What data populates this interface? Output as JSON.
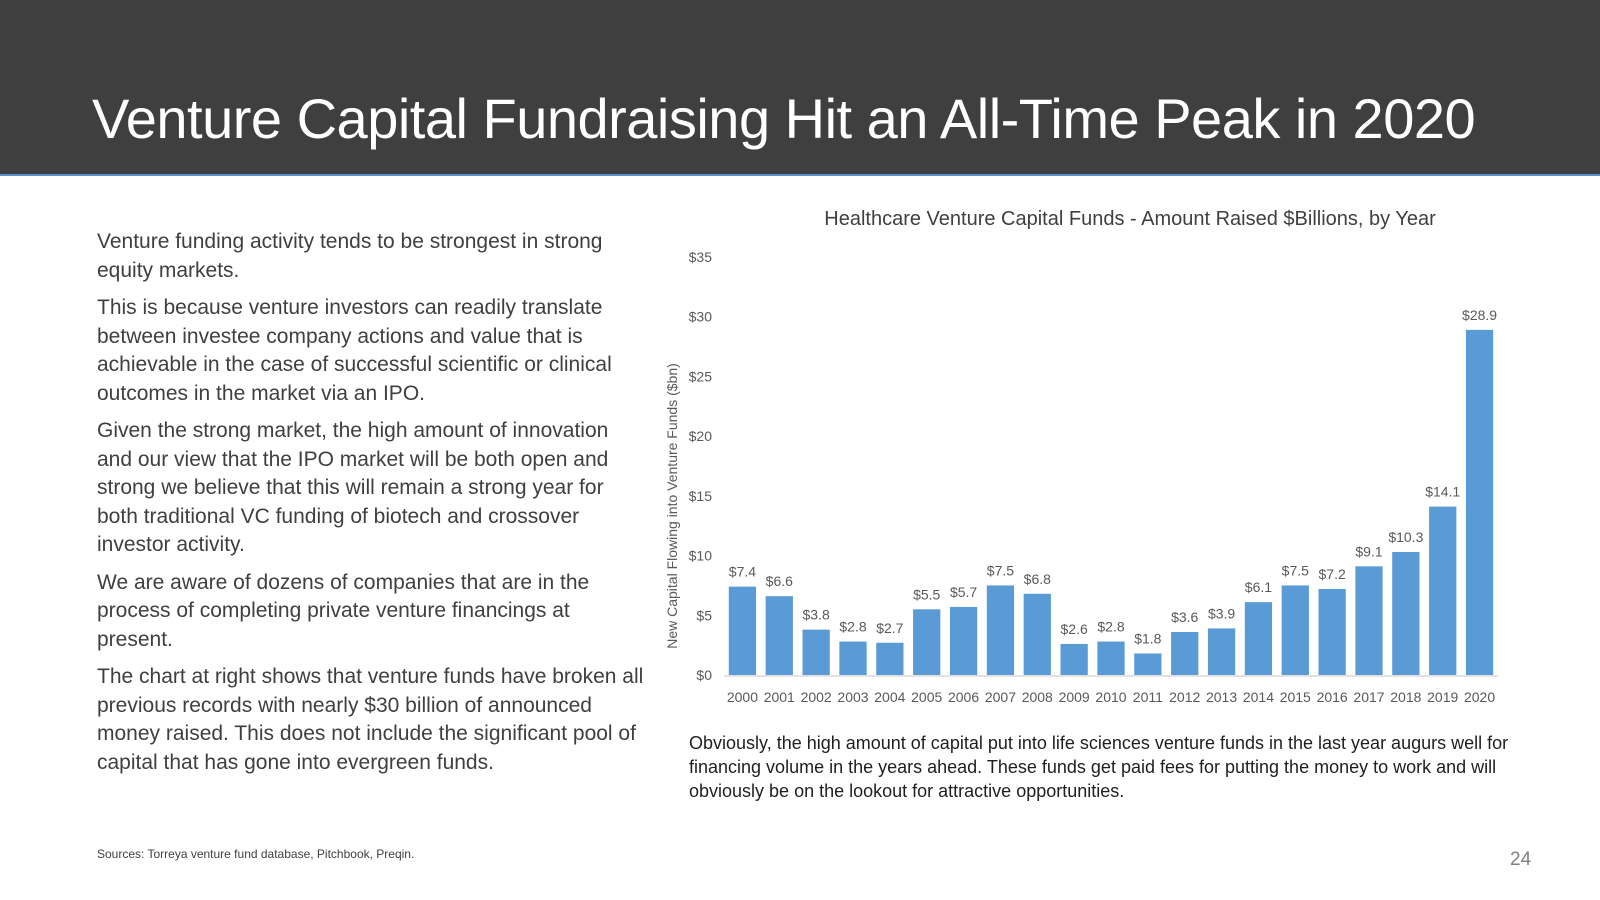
{
  "slide": {
    "title": "Venture Capital Fundraising Hit an All-Time Peak in 2020",
    "paragraphs": [
      "Venture funding activity tends to be strongest in strong equity markets.",
      "This is because venture investors can readily translate between investee company actions and value that is achievable in the case of successful scientific or clinical outcomes in the market via an IPO.",
      "Given the strong market, the high amount of innovation and our view that the IPO market will be both open and strong we believe that this will remain a strong year for both traditional VC funding of biotech and crossover investor activity.",
      "We are aware of dozens of companies that are in the process of completing private venture financings at present.",
      "The chart at right shows that venture funds have broken all previous records with nearly $30 billion of announced money raised. This does not include the significant pool of capital that has gone into evergreen funds."
    ],
    "caption": "Obviously, the high amount of capital put into life sciences venture funds in the last year augurs well for financing volume in the years ahead. These funds get paid fees for putting the money to work and will obviously be on the lookout for attractive opportunities.",
    "source": "Sources: Torreya venture fund database, Pitchbook, Preqin.",
    "page_number": "24"
  },
  "colors": {
    "header_bg": "#3f3f3f",
    "bar": "#5b9bd5",
    "accent_line": "#5b8fc9"
  },
  "chart_data": {
    "type": "bar",
    "title": "Healthcare Venture Capital Funds - Amount Raised $Billions, by Year",
    "xlabel": "",
    "ylabel": "New Capital Flowing into Venture Funds ($bn)",
    "ylim": [
      0,
      35
    ],
    "yticks": [
      0,
      5,
      10,
      15,
      20,
      25,
      30,
      35
    ],
    "ytick_labels": [
      "$0",
      "$5",
      "$10",
      "$15",
      "$20",
      "$25",
      "$30",
      "$35"
    ],
    "grid": false,
    "categories": [
      "2000",
      "2001",
      "2002",
      "2003",
      "2004",
      "2005",
      "2006",
      "2007",
      "2008",
      "2009",
      "2010",
      "2011",
      "2012",
      "2013",
      "2014",
      "2015",
      "2016",
      "2017",
      "2018",
      "2019",
      "2020"
    ],
    "values": [
      7.4,
      6.6,
      3.8,
      2.8,
      2.7,
      5.5,
      5.7,
      7.5,
      6.8,
      2.6,
      2.8,
      1.8,
      3.6,
      3.9,
      6.1,
      7.5,
      7.2,
      9.1,
      10.3,
      14.1,
      28.9
    ],
    "data_labels": [
      "$7.4",
      "$6.6",
      "$3.8",
      "$2.8",
      "$2.7",
      "$5.5",
      "$5.7",
      "$7.5",
      "$6.8",
      "$2.6",
      "$2.8",
      "$1.8",
      "$3.6",
      "$3.9",
      "$6.1",
      "$7.5",
      "$7.2",
      "$9.1",
      "$10.3",
      "$14.1",
      "$28.9"
    ]
  }
}
